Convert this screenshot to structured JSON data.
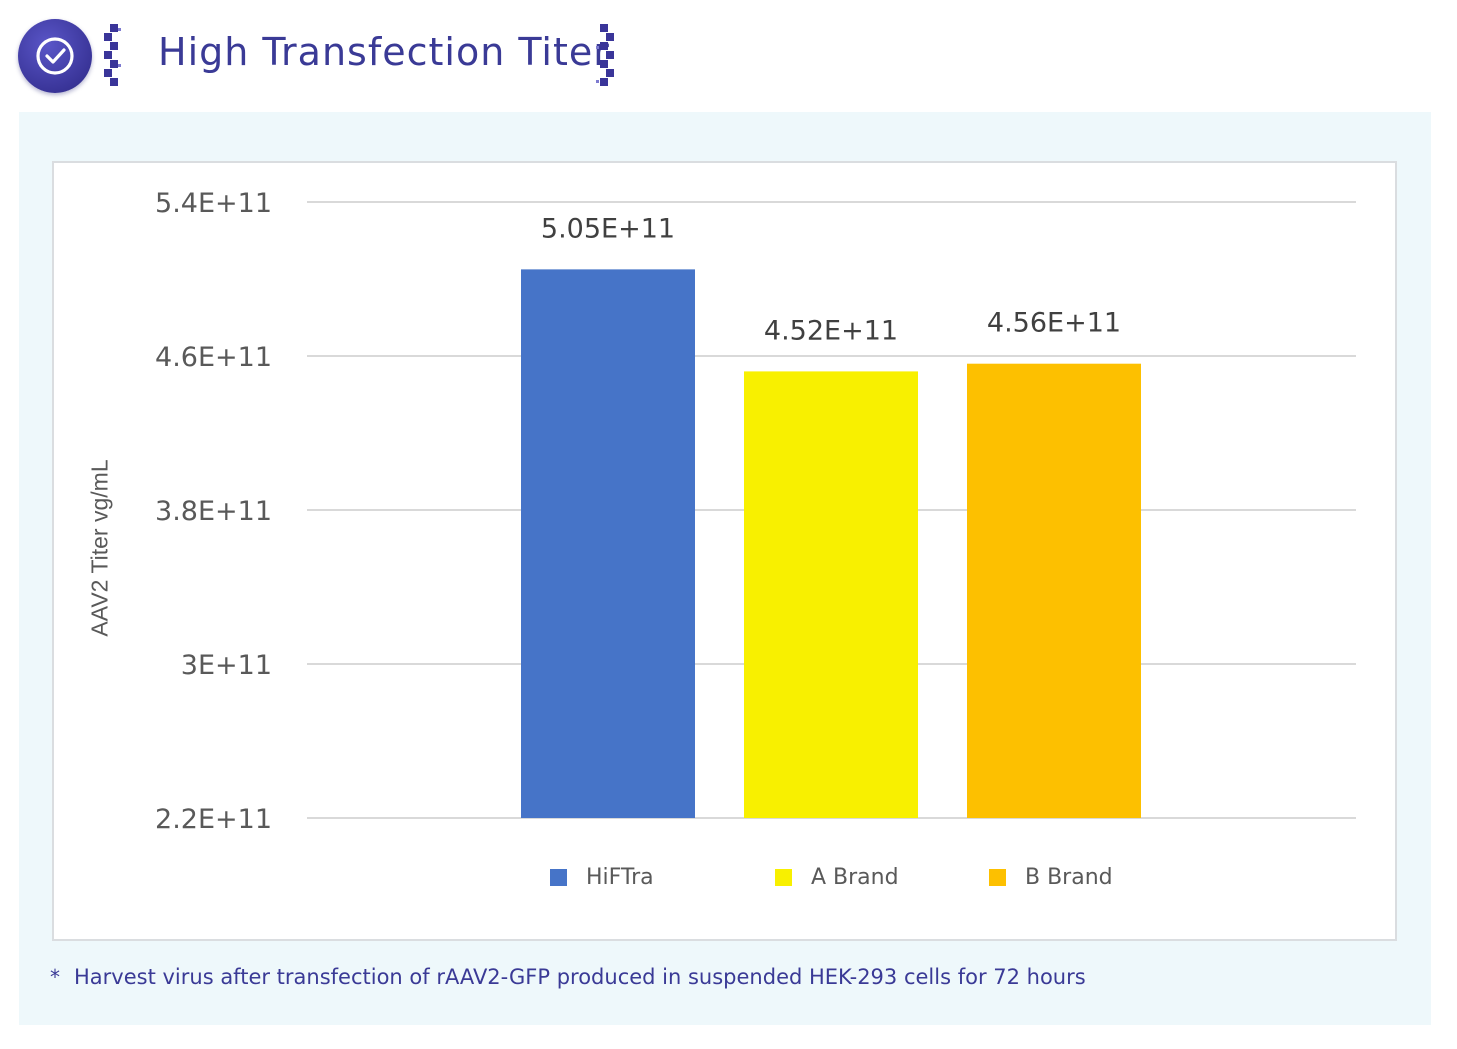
{
  "header": {
    "title": "High Transfection Titer",
    "badge_icon": "check-circle-icon"
  },
  "colors": {
    "title": "#3a3a96",
    "panel_bg": "#eef8fb",
    "grid": "#d9d9d9",
    "axis_text": "#595959"
  },
  "chart_data": {
    "type": "bar",
    "title": "",
    "xlabel": "",
    "ylabel": "AAV2 Titer vg/mL",
    "categories": [
      "HiFTra",
      "A Brand",
      "B Brand"
    ],
    "values": [
      505000000000.0,
      452000000000.0,
      456000000000.0
    ],
    "value_labels": [
      "5.05E+11",
      "4.52E+11",
      "4.56E+11"
    ],
    "colors": [
      "#4674c8",
      "#f8f000",
      "#fdc000"
    ],
    "ylim": [
      220000000000.0,
      540000000000.0
    ],
    "yticks": [
      220000000000.0,
      300000000000.0,
      380000000000.0,
      460000000000.0,
      540000000000.0
    ],
    "ytick_labels": [
      "2.2E+11",
      "3E+11",
      "3.8E+11",
      "4.6E+11",
      "5.4E+11"
    ],
    "grid": true,
    "legend": {
      "position": "bottom",
      "entries": [
        "HiFTra",
        "A Brand",
        "B Brand"
      ]
    }
  },
  "footnote": {
    "marker": "*",
    "text": "Harvest virus after transfection of rAAV2-GFP produced in suspended HEK-293 cells for 72 hours"
  }
}
